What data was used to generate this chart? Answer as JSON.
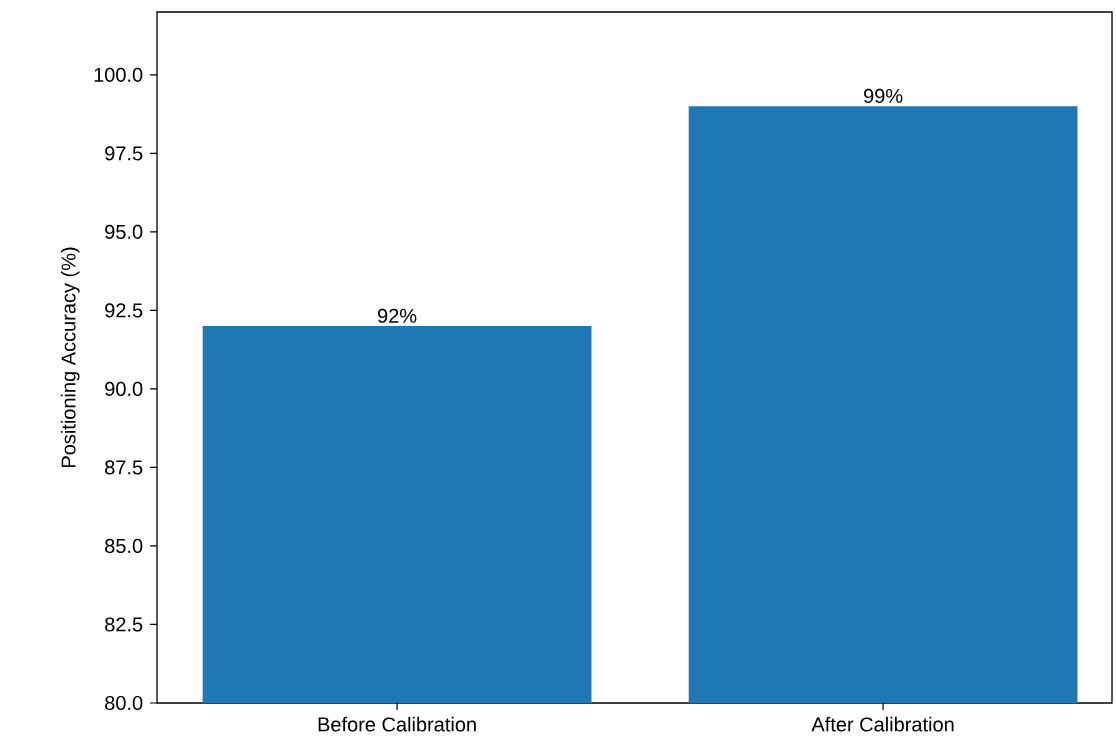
{
  "chart_data": {
    "type": "bar",
    "ylabel": "Positioning Accuracy (%)",
    "categories": [
      "Before Calibration",
      "After Calibration"
    ],
    "values": [
      92,
      99
    ],
    "value_labels": [
      "92%",
      "99%"
    ],
    "color": "#1f77b4",
    "ylim": [
      80,
      102
    ],
    "yticks": [
      {
        "value": 80,
        "label": "80.0"
      },
      {
        "value": 82.5,
        "label": "82.5"
      },
      {
        "value": 85,
        "label": "85.0"
      },
      {
        "value": 87.5,
        "label": "87.5"
      },
      {
        "value": 90,
        "label": "90.0"
      },
      {
        "value": 92.5,
        "label": "92.5"
      },
      {
        "value": 95,
        "label": "95.0"
      },
      {
        "value": 97.5,
        "label": "97.5"
      },
      {
        "value": 100,
        "label": "100.0"
      }
    ],
    "grid": false
  }
}
